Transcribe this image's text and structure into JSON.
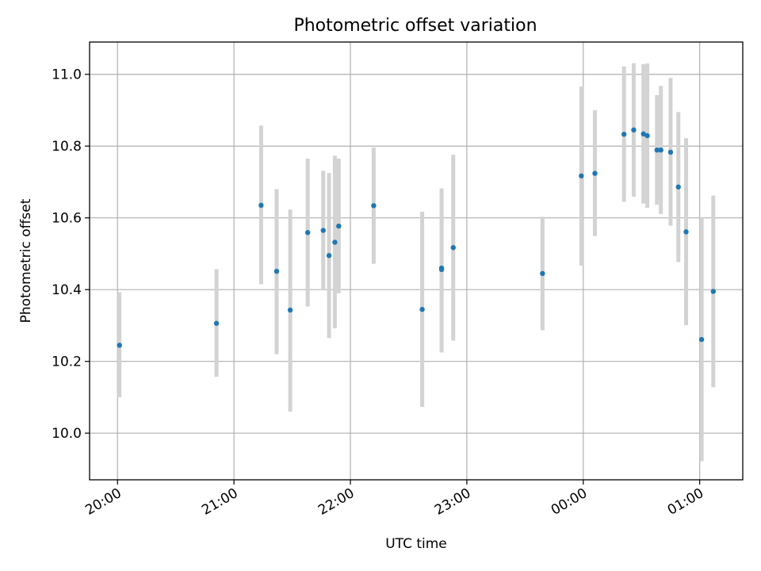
{
  "chart_data": {
    "type": "scatter",
    "title": "Photometric offset variation",
    "xlabel": "UTC time",
    "ylabel": "Photometric offset",
    "x_tick_labels": [
      "20:00",
      "21:00",
      "22:00",
      "23:00",
      "00:00",
      "01:00"
    ],
    "x_tick_hours": [
      0,
      1,
      2,
      3,
      4,
      5
    ],
    "y_ticks": [
      10.0,
      10.2,
      10.4,
      10.6,
      10.8,
      11.0
    ],
    "y_tick_labels": [
      "10.0",
      "10.2",
      "10.4",
      "10.6",
      "10.8",
      "11.0"
    ],
    "xlim": [
      -0.24,
      5.37
    ],
    "ylim": [
      9.87,
      11.09
    ],
    "grid": true,
    "colors": {
      "point": "#1f77b4",
      "errorbar": "#d3d3d3"
    },
    "points": [
      {
        "t": "20:01",
        "y": 10.245,
        "lo": 10.1,
        "hi": 10.393
      },
      {
        "t": "20:51",
        "y": 10.306,
        "lo": 10.157,
        "hi": 10.457
      },
      {
        "t": "21:14",
        "y": 10.635,
        "lo": 10.415,
        "hi": 10.857
      },
      {
        "t": "21:22",
        "y": 10.451,
        "lo": 10.22,
        "hi": 10.68
      },
      {
        "t": "21:29",
        "y": 10.343,
        "lo": 10.06,
        "hi": 10.623
      },
      {
        "t": "21:38",
        "y": 10.559,
        "lo": 10.353,
        "hi": 10.765
      },
      {
        "t": "21:46",
        "y": 10.565,
        "lo": 10.4,
        "hi": 10.731
      },
      {
        "t": "21:49",
        "y": 10.495,
        "lo": 10.265,
        "hi": 10.725
      },
      {
        "t": "21:52",
        "y": 10.532,
        "lo": 10.292,
        "hi": 10.773
      },
      {
        "t": "21:54",
        "y": 10.577,
        "lo": 10.39,
        "hi": 10.765
      },
      {
        "t": "22:12",
        "y": 10.634,
        "lo": 10.472,
        "hi": 10.796
      },
      {
        "t": "22:37",
        "y": 10.345,
        "lo": 10.073,
        "hi": 10.617
      },
      {
        "t": "22:47",
        "y": 10.46,
        "lo": 10.225,
        "hi": 10.682
      },
      {
        "t": "22:47",
        "y": 10.456,
        "lo": 10.225,
        "hi": 10.682
      },
      {
        "t": "22:53",
        "y": 10.517,
        "lo": 10.258,
        "hi": 10.776
      },
      {
        "t": "23:39",
        "y": 10.445,
        "lo": 10.287,
        "hi": 10.603
      },
      {
        "t": "23:59",
        "y": 10.717,
        "lo": 10.467,
        "hi": 10.966
      },
      {
        "t": "00:06",
        "y": 10.724,
        "lo": 10.549,
        "hi": 10.9
      },
      {
        "t": "00:21",
        "y": 10.833,
        "lo": 10.645,
        "hi": 11.022
      },
      {
        "t": "00:26",
        "y": 10.845,
        "lo": 10.659,
        "hi": 11.031
      },
      {
        "t": "00:31",
        "y": 10.834,
        "lo": 10.64,
        "hi": 11.028
      },
      {
        "t": "00:33",
        "y": 10.829,
        "lo": 10.628,
        "hi": 11.03
      },
      {
        "t": "00:38",
        "y": 10.789,
        "lo": 10.637,
        "hi": 10.942
      },
      {
        "t": "00:40",
        "y": 10.789,
        "lo": 10.611,
        "hi": 10.968
      },
      {
        "t": "00:45",
        "y": 10.783,
        "lo": 10.578,
        "hi": 10.99
      },
      {
        "t": "00:49",
        "y": 10.686,
        "lo": 10.477,
        "hi": 10.895
      },
      {
        "t": "00:53",
        "y": 10.561,
        "lo": 10.301,
        "hi": 10.822
      },
      {
        "t": "01:01",
        "y": 10.261,
        "lo": 9.922,
        "hi": 10.602
      },
      {
        "t": "01:07",
        "y": 10.395,
        "lo": 10.128,
        "hi": 10.662
      }
    ]
  }
}
